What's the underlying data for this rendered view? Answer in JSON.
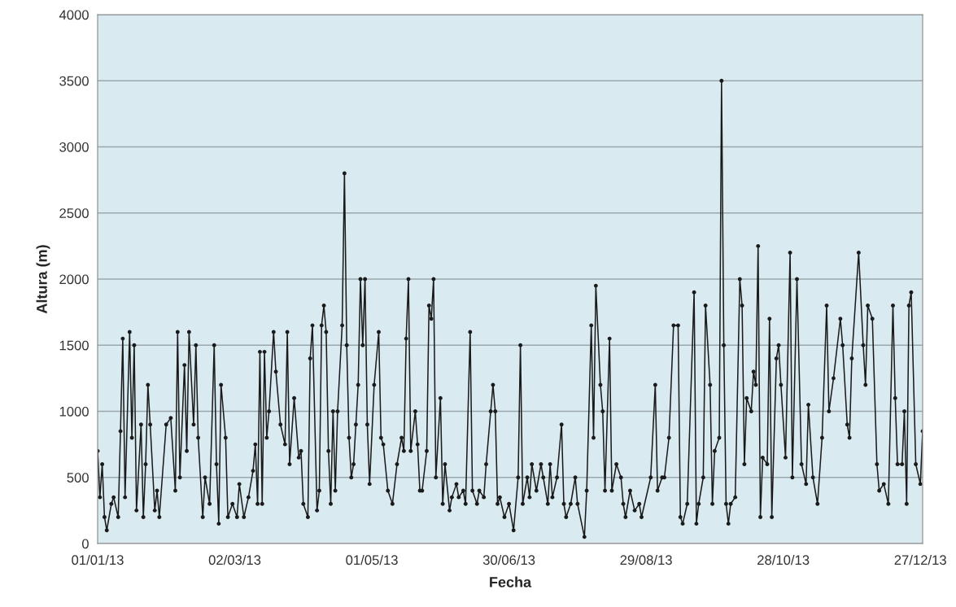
{
  "chart_data": {
    "type": "line",
    "xlabel": "Fecha",
    "ylabel": "Altura (m)",
    "xlim": [
      "2013-01-01",
      "2013-12-28"
    ],
    "xticks": [
      {
        "value": "2013-01-01",
        "label": "01/01/13"
      },
      {
        "value": "2013-03-02",
        "label": "02/03/13"
      },
      {
        "value": "2013-05-01",
        "label": "01/05/13"
      },
      {
        "value": "2013-06-30",
        "label": "30/06/13"
      },
      {
        "value": "2013-08-29",
        "label": "29/08/13"
      },
      {
        "value": "2013-10-28",
        "label": "28/10/13"
      },
      {
        "value": "2013-12-27",
        "label": "27/12/13"
      }
    ],
    "ylim": [
      0,
      4000
    ],
    "yticks": [
      0,
      500,
      1000,
      1500,
      2000,
      2500,
      3000,
      3500,
      4000
    ],
    "grid": "y",
    "marker": "circle",
    "line_style": "solid",
    "x": [
      "2013-01-01",
      "2013-01-02",
      "2013-01-03",
      "2013-01-04",
      "2013-01-05",
      "2013-01-07",
      "2013-01-08",
      "2013-01-10",
      "2013-01-11",
      "2013-01-12",
      "2013-01-13",
      "2013-01-15",
      "2013-01-16",
      "2013-01-17",
      "2013-01-18",
      "2013-01-20",
      "2013-01-21",
      "2013-01-22",
      "2013-01-23",
      "2013-01-24",
      "2013-01-26",
      "2013-01-27",
      "2013-01-28",
      "2013-01-31",
      "2013-02-02",
      "2013-02-04",
      "2013-02-05",
      "2013-02-06",
      "2013-02-08",
      "2013-02-09",
      "2013-02-10",
      "2013-02-12",
      "2013-02-13",
      "2013-02-14",
      "2013-02-16",
      "2013-02-17",
      "2013-02-19",
      "2013-02-21",
      "2013-02-22",
      "2013-02-23",
      "2013-02-24",
      "2013-02-26",
      "2013-02-27",
      "2013-03-01",
      "2013-03-03",
      "2013-03-04",
      "2013-03-06",
      "2013-03-08",
      "2013-03-10",
      "2013-03-11",
      "2013-03-12",
      "2013-03-13",
      "2013-03-14",
      "2013-03-15",
      "2013-03-16",
      "2013-03-17",
      "2013-03-19",
      "2013-03-20",
      "2013-03-22",
      "2013-03-24",
      "2013-03-25",
      "2013-03-26",
      "2013-03-28",
      "2013-03-30",
      "2013-03-31",
      "2013-04-01",
      "2013-04-03",
      "2013-04-04",
      "2013-04-05",
      "2013-04-07",
      "2013-04-08",
      "2013-04-09",
      "2013-04-10",
      "2013-04-11",
      "2013-04-12",
      "2013-04-13",
      "2013-04-14",
      "2013-04-15",
      "2013-04-16",
      "2013-04-18",
      "2013-04-19",
      "2013-04-20",
      "2013-04-21",
      "2013-04-22",
      "2013-04-23",
      "2013-04-24",
      "2013-04-25",
      "2013-04-26",
      "2013-04-27",
      "2013-04-28",
      "2013-04-29",
      "2013-04-30",
      "2013-05-02",
      "2013-05-04",
      "2013-05-05",
      "2013-05-06",
      "2013-05-08",
      "2013-05-10",
      "2013-05-12",
      "2013-05-14",
      "2013-05-15",
      "2013-05-16",
      "2013-05-17",
      "2013-05-18",
      "2013-05-20",
      "2013-05-21",
      "2013-05-22",
      "2013-05-23",
      "2013-05-25",
      "2013-05-26",
      "2013-05-27",
      "2013-05-28",
      "2013-05-29",
      "2013-05-31",
      "2013-06-01",
      "2013-06-02",
      "2013-06-04",
      "2013-06-05",
      "2013-06-07",
      "2013-06-08",
      "2013-06-10",
      "2013-06-11",
      "2013-06-13",
      "2013-06-14",
      "2013-06-16",
      "2013-06-17",
      "2013-06-19",
      "2013-06-20",
      "2013-06-22",
      "2013-06-23",
      "2013-06-24",
      "2013-06-25",
      "2013-06-26",
      "2013-06-28",
      "2013-06-30",
      "2013-07-02",
      "2013-07-04",
      "2013-07-05",
      "2013-07-06",
      "2013-07-08",
      "2013-07-09",
      "2013-07-10",
      "2013-07-12",
      "2013-07-14",
      "2013-07-15",
      "2013-07-17",
      "2013-07-18",
      "2013-07-19",
      "2013-07-21",
      "2013-07-23",
      "2013-07-24",
      "2013-07-25",
      "2013-07-27",
      "2013-07-29",
      "2013-07-30",
      "2013-08-02",
      "2013-08-03",
      "2013-08-05",
      "2013-08-06",
      "2013-08-07",
      "2013-08-09",
      "2013-08-10",
      "2013-08-11",
      "2013-08-13",
      "2013-08-14",
      "2013-08-16",
      "2013-08-18",
      "2013-08-19",
      "2013-08-20",
      "2013-08-22",
      "2013-08-24",
      "2013-08-26",
      "2013-08-27",
      "2013-08-31",
      "2013-09-02",
      "2013-09-03",
      "2013-09-05",
      "2013-09-06",
      "2013-09-08",
      "2013-09-10",
      "2013-09-12",
      "2013-09-13",
      "2013-09-14",
      "2013-09-16",
      "2013-09-19",
      "2013-09-20",
      "2013-09-21",
      "2013-09-23",
      "2013-09-24",
      "2013-09-26",
      "2013-09-27",
      "2013-09-28",
      "2013-09-30",
      "2013-10-01",
      "2013-10-02",
      "2013-10-03",
      "2013-10-04",
      "2013-10-05",
      "2013-10-07",
      "2013-10-09",
      "2013-10-10",
      "2013-10-11",
      "2013-10-12",
      "2013-10-14",
      "2013-10-15",
      "2013-10-16",
      "2013-10-17",
      "2013-10-18",
      "2013-10-19",
      "2013-10-21",
      "2013-10-22",
      "2013-10-23",
      "2013-10-25",
      "2013-10-26",
      "2013-10-27",
      "2013-10-29",
      "2013-10-31",
      "2013-11-01",
      "2013-11-03",
      "2013-11-05",
      "2013-11-07",
      "2013-11-08",
      "2013-11-10",
      "2013-11-12",
      "2013-11-14",
      "2013-11-16",
      "2013-11-17",
      "2013-11-19",
      "2013-11-22",
      "2013-11-23",
      "2013-11-25",
      "2013-11-26",
      "2013-11-27",
      "2013-11-30",
      "2013-12-02",
      "2013-12-03",
      "2013-12-04",
      "2013-12-06",
      "2013-12-08",
      "2013-12-09",
      "2013-12-11",
      "2013-12-13",
      "2013-12-15",
      "2013-12-16",
      "2013-12-17",
      "2013-12-19",
      "2013-12-20",
      "2013-12-21",
      "2013-12-22",
      "2013-12-23",
      "2013-12-25",
      "2013-12-27",
      "2013-12-28"
    ],
    "series": [
      {
        "color": "#1a1a1a",
        "values": [
          700,
          350,
          600,
          200,
          100,
          300,
          350,
          200,
          850,
          1550,
          350,
          1600,
          800,
          1500,
          250,
          900,
          200,
          600,
          1200,
          900,
          250,
          400,
          200,
          900,
          950,
          400,
          1600,
          500,
          1350,
          700,
          1600,
          900,
          1500,
          800,
          200,
          500,
          300,
          1500,
          600,
          150,
          1200,
          800,
          200,
          300,
          200,
          450,
          200,
          350,
          550,
          750,
          300,
          1450,
          300,
          1450,
          800,
          1000,
          1600,
          1300,
          900,
          750,
          1600,
          600,
          1100,
          650,
          700,
          300,
          200,
          1400,
          1650,
          250,
          400,
          1650,
          1800,
          1600,
          700,
          300,
          1000,
          400,
          1000,
          1650,
          2800,
          1500,
          800,
          500,
          600,
          900,
          1200,
          2000,
          1500,
          2000,
          900,
          450,
          1200,
          1600,
          800,
          750,
          400,
          300,
          600,
          800,
          700,
          1550,
          2000,
          700,
          1000,
          750,
          400,
          400,
          700,
          1800,
          1700,
          2000,
          500,
          1100,
          300,
          600,
          250,
          350,
          450,
          350,
          400,
          300,
          1600,
          400,
          300,
          400,
          350,
          600,
          1000,
          1200,
          1000,
          300,
          350,
          200,
          300,
          100,
          500,
          1500,
          300,
          500,
          350,
          600,
          400,
          600,
          500,
          300,
          600,
          350,
          500,
          900,
          300,
          200,
          300,
          500,
          300,
          50,
          400,
          1650,
          800,
          1950,
          1200,
          1000,
          400,
          1550,
          400,
          600,
          500,
          300,
          200,
          400,
          250,
          300,
          200,
          500,
          1200,
          400,
          500,
          500,
          800,
          1650,
          1650,
          200,
          150,
          300,
          1900,
          150,
          300,
          500,
          1800,
          1200,
          300,
          700,
          800,
          3500,
          1500,
          300,
          150,
          300,
          350,
          2000,
          1800,
          600,
          1100,
          1000,
          1300,
          1200,
          2250,
          200,
          650,
          600,
          1700,
          200,
          1400,
          1500,
          1200,
          650,
          2200,
          500,
          2000,
          600,
          450,
          1050,
          500,
          300,
          800,
          1800,
          1000,
          1250,
          1700,
          1500,
          900,
          800,
          1400,
          2200,
          1500,
          1200,
          1800,
          1700,
          600,
          400,
          450,
          300,
          1800,
          1100,
          600,
          600,
          1000,
          300,
          1800,
          1900,
          600,
          450,
          850
        ]
      }
    ]
  }
}
